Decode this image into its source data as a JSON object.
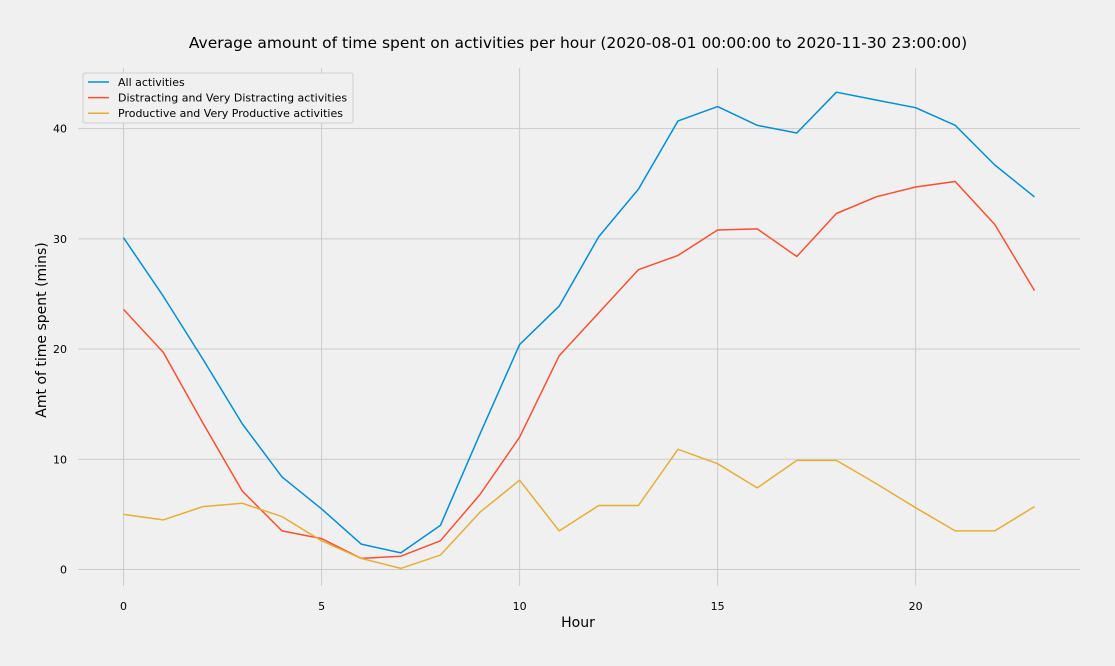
{
  "chart_data": {
    "type": "line",
    "title": "Average amount of time spent on activities per hour (2020-08-01 00:00:00 to 2020-11-30 23:00:00)",
    "xlabel": "Hour",
    "ylabel": "Amt of time spent (mins)",
    "xlim": [
      -1.15,
      24.15
    ],
    "ylim": [
      -1.5,
      45.5
    ],
    "xticks": [
      0,
      5,
      10,
      15,
      20
    ],
    "yticks": [
      0,
      10,
      20,
      30,
      40
    ],
    "grid": true,
    "legend_position": "top-left",
    "x": [
      0,
      1,
      2,
      3,
      4,
      5,
      6,
      7,
      8,
      9,
      10,
      11,
      12,
      13,
      14,
      15,
      16,
      17,
      18,
      19,
      20,
      21,
      22,
      23
    ],
    "series": [
      {
        "name": "All activities",
        "color": "#008fd5",
        "values": [
          30.1,
          24.8,
          19.1,
          13.2,
          8.4,
          5.5,
          2.3,
          1.5,
          4.0,
          12.3,
          20.4,
          23.9,
          30.2,
          34.5,
          40.7,
          42.0,
          40.3,
          39.6,
          43.3,
          42.6,
          41.9,
          40.3,
          36.7,
          33.8
        ]
      },
      {
        "name": "Distracting and Very Distracting activities",
        "color": "#fc4f30",
        "values": [
          23.6,
          19.7,
          13.3,
          7.1,
          3.5,
          2.8,
          1.0,
          1.2,
          2.6,
          6.8,
          12.0,
          19.4,
          23.3,
          27.2,
          28.5,
          30.8,
          30.9,
          28.4,
          32.3,
          33.8,
          34.7,
          35.2,
          31.3,
          25.3
        ]
      },
      {
        "name": "Productive and Very Productive activities",
        "color": "#e5ae38",
        "values": [
          5.0,
          4.5,
          5.7,
          6.0,
          4.8,
          2.6,
          1.0,
          0.1,
          1.3,
          5.2,
          8.1,
          3.5,
          5.8,
          5.8,
          10.9,
          9.6,
          7.4,
          9.9,
          9.9,
          7.8,
          5.6,
          3.5,
          3.5,
          5.7
        ]
      }
    ]
  }
}
